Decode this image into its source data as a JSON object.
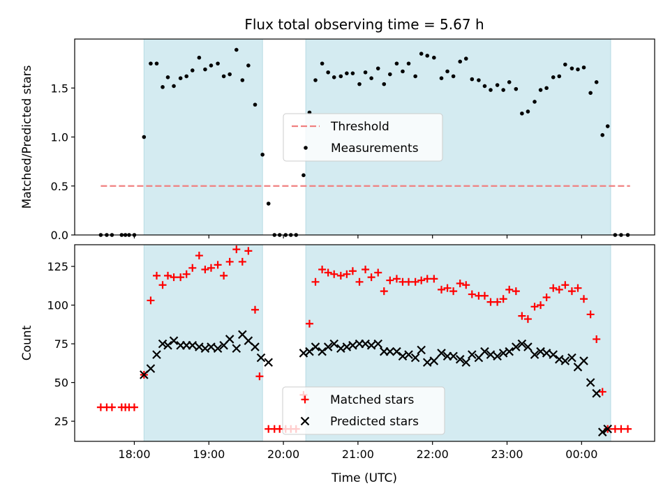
{
  "chart_data": {
    "title": "Flux total observing time = 5.67 h",
    "xlabel": "Time (UTC)",
    "x_unit": "hours UTC (values >= 24 are after midnight)",
    "x_ticks": [
      {
        "value": 18,
        "label": "18:00"
      },
      {
        "value": 19,
        "label": "19:00"
      },
      {
        "value": 20,
        "label": "20:00"
      },
      {
        "value": 21,
        "label": "21:00"
      },
      {
        "value": 22,
        "label": "22:00"
      },
      {
        "value": 23,
        "label": "23:00"
      },
      {
        "value": 24,
        "label": "00:00"
      }
    ],
    "xlim": [
      17.2,
      24.98
    ],
    "observing_windows": [
      [
        18.13,
        19.72
      ],
      [
        20.3,
        24.39
      ]
    ],
    "shade_color": "#d4ebf1",
    "panels": [
      {
        "id": "ratio",
        "type": "scatter",
        "ylabel": "Matched/Predicted stars",
        "ylim": [
          0,
          2.0
        ],
        "y_ticks": [
          {
            "value": 0.0,
            "label": "0.0"
          },
          {
            "value": 0.5,
            "label": "0.5"
          },
          {
            "value": 1.0,
            "label": "1.0"
          },
          {
            "value": 1.5,
            "label": "1.5"
          }
        ],
        "legend_position": "center",
        "threshold": {
          "name": "Threshold",
          "y": 0.5,
          "x_range": [
            17.55,
            24.65
          ],
          "color": "#f08080"
        },
        "series": [
          {
            "name": "Measurements",
            "marker": "dot",
            "color": "#000000",
            "x": [
              17.55,
              17.63,
              17.7,
              17.83,
              17.88,
              17.93,
              18.0,
              18.13,
              18.22,
              18.3,
              18.38,
              18.45,
              18.53,
              18.62,
              18.7,
              18.78,
              18.87,
              18.95,
              19.03,
              19.12,
              19.2,
              19.28,
              19.37,
              19.45,
              19.53,
              19.62,
              19.72,
              19.8,
              19.88,
              19.95,
              20.03,
              20.1,
              20.17,
              20.27,
              20.35,
              20.43,
              20.52,
              20.6,
              20.68,
              20.77,
              20.85,
              20.93,
              21.02,
              21.1,
              21.18,
              21.27,
              21.35,
              21.43,
              21.52,
              21.6,
              21.68,
              21.77,
              21.85,
              21.93,
              22.02,
              22.12,
              22.2,
              22.28,
              22.37,
              22.45,
              22.53,
              22.62,
              22.7,
              22.78,
              22.87,
              22.95,
              23.03,
              23.12,
              23.2,
              23.28,
              23.37,
              23.45,
              23.53,
              23.62,
              23.7,
              23.78,
              23.87,
              23.95,
              24.03,
              24.12,
              24.2,
              24.28,
              24.35,
              24.45,
              24.53,
              24.62
            ],
            "y": [
              0,
              0,
              0,
              0,
              0,
              0,
              0,
              1.0,
              1.75,
              1.75,
              1.51,
              1.61,
              1.52,
              1.6,
              1.62,
              1.68,
              1.81,
              1.69,
              1.73,
              1.75,
              1.62,
              1.64,
              1.89,
              1.58,
              1.73,
              1.33,
              0.82,
              0.32,
              0,
              0,
              0,
              0,
              0,
              0.61,
              1.25,
              1.58,
              1.75,
              1.66,
              1.61,
              1.62,
              1.65,
              1.65,
              1.54,
              1.66,
              1.6,
              1.7,
              1.54,
              1.64,
              1.75,
              1.67,
              1.75,
              1.62,
              1.85,
              1.83,
              1.81,
              1.6,
              1.67,
              1.62,
              1.77,
              1.8,
              1.59,
              1.58,
              1.52,
              1.48,
              1.53,
              1.48,
              1.56,
              1.49,
              1.24,
              1.26,
              1.36,
              1.48,
              1.5,
              1.61,
              1.62,
              1.74,
              1.7,
              1.69,
              1.71,
              1.45,
              1.56,
              1.02,
              1.11,
              0,
              0,
              0
            ]
          }
        ]
      },
      {
        "id": "count",
        "type": "scatter",
        "ylabel": "Count",
        "ylim": [
          12,
          139
        ],
        "y_ticks": [
          {
            "value": 25,
            "label": "25"
          },
          {
            "value": 50,
            "label": "50"
          },
          {
            "value": 75,
            "label": "75"
          },
          {
            "value": 100,
            "label": "100"
          },
          {
            "value": 125,
            "label": "125"
          }
        ],
        "legend_position": "lower center",
        "series": [
          {
            "name": "Matched stars",
            "marker": "plus",
            "color": "#ff0000",
            "x": [
              17.55,
              17.63,
              17.7,
              17.83,
              17.88,
              17.93,
              18.0,
              18.13,
              18.22,
              18.3,
              18.38,
              18.45,
              18.53,
              18.62,
              18.7,
              18.78,
              18.87,
              18.95,
              19.03,
              19.12,
              19.2,
              19.28,
              19.37,
              19.45,
              19.53,
              19.62,
              19.68,
              19.8,
              19.88,
              19.95,
              20.03,
              20.1,
              20.17,
              20.27,
              20.35,
              20.43,
              20.52,
              20.6,
              20.68,
              20.77,
              20.85,
              20.93,
              21.02,
              21.1,
              21.18,
              21.27,
              21.35,
              21.43,
              21.52,
              21.6,
              21.68,
              21.77,
              21.85,
              21.93,
              22.02,
              22.12,
              22.2,
              22.28,
              22.37,
              22.45,
              22.53,
              22.62,
              22.7,
              22.78,
              22.87,
              22.95,
              23.03,
              23.12,
              23.2,
              23.28,
              23.37,
              23.45,
              23.53,
              23.62,
              23.7,
              23.78,
              23.87,
              23.95,
              24.03,
              24.12,
              24.2,
              24.28,
              24.35,
              24.45,
              24.53,
              24.62
            ],
            "y": [
              34,
              34,
              34,
              34,
              34,
              34,
              34,
              55,
              103,
              119,
              113,
              119,
              118,
              118,
              120,
              124,
              132,
              123,
              124,
              126,
              119,
              128,
              136,
              128,
              135,
              97,
              54,
              20,
              20,
              20,
              20,
              20,
              20,
              42,
              88,
              115,
              123,
              121,
              120,
              119,
              120,
              122,
              115,
              123,
              118,
              121,
              109,
              116,
              117,
              115,
              115,
              115,
              116,
              117,
              117,
              110,
              111,
              109,
              114,
              113,
              107,
              106,
              106,
              102,
              102,
              104,
              110,
              109,
              93,
              91,
              99,
              100,
              105,
              111,
              110,
              113,
              109,
              111,
              104,
              94,
              78,
              44,
              20,
              20,
              20,
              20
            ]
          },
          {
            "name": "Predicted stars",
            "marker": "x",
            "color": "#000000",
            "x": [
              18.13,
              18.22,
              18.3,
              18.38,
              18.45,
              18.53,
              18.62,
              18.7,
              18.78,
              18.87,
              18.95,
              19.03,
              19.12,
              19.2,
              19.28,
              19.37,
              19.45,
              19.53,
              19.62,
              19.7,
              19.8,
              20.27,
              20.35,
              20.43,
              20.52,
              20.6,
              20.68,
              20.77,
              20.85,
              20.93,
              21.02,
              21.1,
              21.18,
              21.27,
              21.35,
              21.43,
              21.52,
              21.6,
              21.68,
              21.77,
              21.85,
              21.93,
              22.02,
              22.12,
              22.2,
              22.28,
              22.37,
              22.45,
              22.53,
              22.62,
              22.7,
              22.78,
              22.87,
              22.95,
              23.03,
              23.12,
              23.2,
              23.28,
              23.37,
              23.45,
              23.53,
              23.62,
              23.7,
              23.78,
              23.87,
              23.95,
              24.03,
              24.12,
              24.2,
              24.28,
              24.35
            ],
            "y": [
              55,
              59,
              68,
              75,
              74,
              77,
              74,
              74,
              74,
              73,
              72,
              73,
              72,
              74,
              78,
              72,
              81,
              77,
              73,
              66,
              63,
              69,
              70,
              73,
              70,
              73,
              75,
              72,
              73,
              74,
              75,
              75,
              74,
              75,
              70,
              70,
              70,
              67,
              68,
              66,
              71,
              63,
              64,
              69,
              67,
              67,
              65,
              63,
              68,
              66,
              70,
              68,
              67,
              69,
              70,
              73,
              75,
              73,
              68,
              70,
              69,
              68,
              65,
              64,
              66,
              60,
              64,
              50,
              43,
              18,
              20
            ]
          }
        ]
      }
    ]
  }
}
